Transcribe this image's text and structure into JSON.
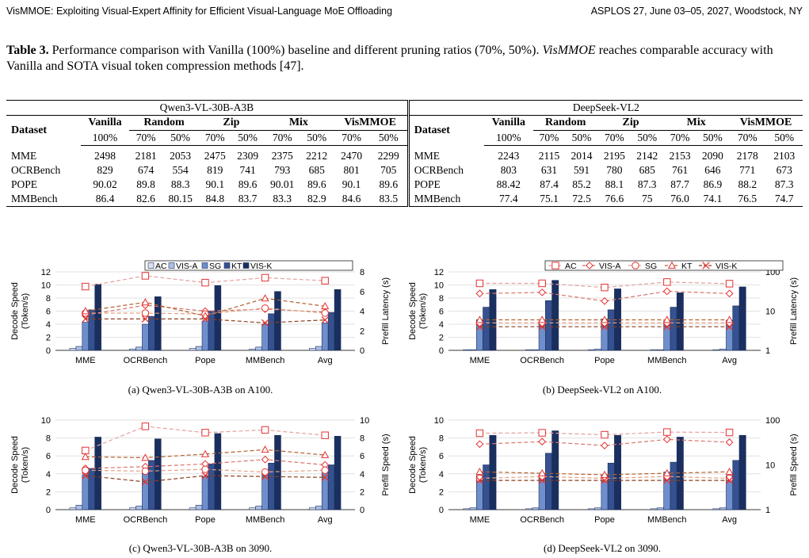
{
  "header": {
    "left": "VisMMOE: Exploiting Visual-Expert Affinity for Efficient Visual-Language MoE Offloading",
    "right": "ASPLOS 27, June 03–05, 2027, Woodstock, NY"
  },
  "caption": {
    "label": "Table 3.",
    "text1": " Performance comparison with Vanilla (100%) baseline and different pruning ratios (70%, 50%). ",
    "italic": "VisMMOE",
    "text2": " reaches comparable accuracy with Vanilla and SOTA visual token compression methods [47]."
  },
  "table": {
    "left_model": "Qwen3-VL-30B-A3B",
    "right_model": "DeepSeek-VL2",
    "dataset_label": "Dataset",
    "methods": [
      "Vanilla",
      "Random",
      "Zip",
      "Mix",
      "VisMMOE"
    ],
    "ratios": [
      "100%",
      "70%",
      "50%",
      "70%",
      "50%",
      "70%",
      "50%",
      "70%",
      "50%"
    ],
    "left_rows": [
      {
        "name": "MME",
        "vals": [
          "2498",
          "2181",
          "2053",
          "2475",
          "2309",
          "2375",
          "2212",
          "2470",
          "2299"
        ]
      },
      {
        "name": "OCRBench",
        "vals": [
          "829",
          "674",
          "554",
          "819",
          "741",
          "793",
          "685",
          "801",
          "705"
        ]
      },
      {
        "name": "POPE",
        "vals": [
          "90.02",
          "89.8",
          "88.3",
          "90.1",
          "89.6",
          "90.01",
          "89.6",
          "90.1",
          "89.6"
        ]
      },
      {
        "name": "MMBench",
        "vals": [
          "86.4",
          "82.6",
          "80.15",
          "84.8",
          "83.7",
          "83.3",
          "82.9",
          "84.6",
          "83.5"
        ]
      }
    ],
    "right_rows": [
      {
        "name": "MME",
        "vals": [
          "2243",
          "2115",
          "2014",
          "2195",
          "2142",
          "2153",
          "2090",
          "2178",
          "2103"
        ]
      },
      {
        "name": "OCRBench",
        "vals": [
          "803",
          "631",
          "591",
          "780",
          "685",
          "761",
          "646",
          "771",
          "673"
        ]
      },
      {
        "name": "POPE",
        "vals": [
          "88.42",
          "87.4",
          "85.2",
          "88.1",
          "87.3",
          "87.7",
          "86.9",
          "88.2",
          "87.3"
        ]
      },
      {
        "name": "MMBench",
        "vals": [
          "77.4",
          "75.1",
          "72.5",
          "76.6",
          "75",
          "76.0",
          "74.1",
          "76.5",
          "74.7"
        ]
      }
    ]
  },
  "legend_bars": [
    "AC",
    "VIS-A",
    "SG",
    "KT",
    "VIS-K"
  ],
  "legend_lines": [
    "AC",
    "VIS-A",
    "SG",
    "KT",
    "VIS-K"
  ],
  "colors": {
    "AC": "#dce1ee",
    "VIS-A": "#aebfe6",
    "SG": "#6f8fcc",
    "KT": "#35518f",
    "VIS-K": "#1a2f5e",
    "line_AC": "#e3a1a1",
    "line_VISA": "#d9746b",
    "line_SG": "#e0a080",
    "line_KT": "#b4622e",
    "line_VISK": "#8c3f1f",
    "marker": "#e53030"
  },
  "chart_data": [
    {
      "type": "bar",
      "title": "",
      "categories": [
        "MME",
        "OCRBench",
        "Pope",
        "MMBench",
        "Avg"
      ],
      "ylabel": "Decode Speed (Token/s)",
      "ylim": [
        0,
        12
      ],
      "yticks": [
        "0",
        "2",
        "4",
        "6",
        "8",
        "10",
        "12"
      ],
      "y2label": "Prefill Latency (s)",
      "y2lim": [
        0,
        8
      ],
      "y2ticks": [
        "0",
        "2",
        "4",
        "6",
        "8"
      ],
      "y2log": false,
      "series": [
        {
          "name": "AC",
          "values": [
            0.3,
            0.2,
            0.3,
            0.2,
            0.3
          ]
        },
        {
          "name": "VIS-A",
          "values": [
            0.6,
            0.5,
            0.6,
            0.5,
            0.6
          ]
        },
        {
          "name": "SG",
          "values": [
            4.3,
            4.0,
            4.5,
            4.0,
            4.2
          ]
        },
        {
          "name": "KT",
          "values": [
            6.2,
            5.2,
            6.0,
            5.6,
            5.8
          ]
        },
        {
          "name": "VIS-K",
          "values": [
            10.1,
            8.2,
            9.9,
            9.0,
            9.3
          ]
        }
      ],
      "lines": [
        {
          "name": "AC",
          "values": [
            6.5,
            7.6,
            6.9,
            7.4,
            7.1
          ]
        },
        {
          "name": "VIS-A",
          "values": [
            3.6,
            4.6,
            4.0,
            4.2,
            3.9
          ]
        },
        {
          "name": "SG",
          "values": [
            3.8,
            3.8,
            3.7,
            4.3,
            3.8
          ]
        },
        {
          "name": "KT",
          "values": [
            4.0,
            4.9,
            3.5,
            5.3,
            4.5
          ]
        },
        {
          "name": "VIS-K",
          "values": [
            3.2,
            3.2,
            3.2,
            2.8,
            3.1
          ]
        }
      ],
      "caption_label": "(a)",
      "caption_text": "Qwen3-VL-30B-A3B on A100."
    },
    {
      "type": "bar",
      "title": "",
      "categories": [
        "MME",
        "OCRBench",
        "Pope",
        "MMBench",
        "Avg"
      ],
      "ylabel": "Decode Speed (Token/s)",
      "ylim": [
        0,
        12
      ],
      "yticks": [
        "0",
        "2",
        "4",
        "6",
        "8",
        "10",
        "12"
      ],
      "y2label": "Prefill Latency (s)",
      "y2lim": [
        1,
        100
      ],
      "y2ticks": [
        "1",
        "10",
        "100"
      ],
      "y2log": true,
      "series": [
        {
          "name": "AC",
          "values": [
            0.1,
            0.1,
            0.1,
            0.1,
            0.1
          ]
        },
        {
          "name": "VIS-A",
          "values": [
            0.1,
            0.1,
            0.2,
            0.1,
            0.2
          ]
        },
        {
          "name": "SG",
          "values": [
            4.7,
            4.4,
            4.8,
            4.5,
            4.6
          ]
        },
        {
          "name": "KT",
          "values": [
            6.6,
            7.6,
            6.2,
            6.6,
            6.8
          ]
        },
        {
          "name": "VIS-K",
          "values": [
            9.3,
            10.7,
            9.4,
            8.8,
            9.7
          ]
        }
      ],
      "lines": [
        {
          "name": "AC",
          "values": [
            51,
            51,
            40,
            55,
            50
          ]
        },
        {
          "name": "VIS-A",
          "values": [
            28,
            30,
            18,
            32,
            28
          ]
        },
        {
          "name": "SG",
          "values": [
            5,
            5,
            5,
            5,
            5
          ]
        },
        {
          "name": "KT",
          "values": [
            6,
            6,
            6,
            6,
            6
          ]
        },
        {
          "name": "VIS-K",
          "values": [
            4,
            4,
            4,
            4,
            4
          ]
        }
      ],
      "caption_label": "(b)",
      "caption_text": "DeepSeek-VL2 on A100."
    },
    {
      "type": "bar",
      "title": "",
      "categories": [
        "MME",
        "OCRBench",
        "Pope",
        "MMBench",
        "Avg"
      ],
      "ylabel": "Decode Speed (Token/s)",
      "ylim": [
        0,
        10
      ],
      "yticks": [
        "0",
        "2",
        "4",
        "6",
        "8",
        "10"
      ],
      "y2label": "Prefill Speed (s)",
      "y2lim": [
        0,
        10
      ],
      "y2ticks": [
        "0",
        "2",
        "4",
        "6",
        "8",
        "10"
      ],
      "y2log": false,
      "series": [
        {
          "name": "AC",
          "values": [
            0.2,
            0.2,
            0.2,
            0.2,
            0.2
          ]
        },
        {
          "name": "VIS-A",
          "values": [
            0.5,
            0.4,
            0.5,
            0.4,
            0.4
          ]
        },
        {
          "name": "SG",
          "values": [
            3.9,
            4.1,
            3.7,
            4.3,
            4.1
          ]
        },
        {
          "name": "KT",
          "values": [
            4.6,
            5.5,
            5.1,
            5.2,
            5.0
          ]
        },
        {
          "name": "VIS-K",
          "values": [
            8.1,
            7.9,
            8.5,
            8.3,
            8.2
          ]
        }
      ],
      "lines": [
        {
          "name": "AC",
          "values": [
            6.6,
            9.3,
            8.6,
            8.9,
            8.3
          ]
        },
        {
          "name": "VIS-A",
          "values": [
            4.6,
            4.8,
            5.1,
            5.6,
            5.0
          ]
        },
        {
          "name": "SG",
          "values": [
            4.4,
            4.3,
            4.5,
            4.2,
            4.4
          ]
        },
        {
          "name": "KT",
          "values": [
            5.9,
            5.8,
            6.2,
            6.7,
            6.1
          ]
        },
        {
          "name": "VIS-K",
          "values": [
            3.8,
            3.1,
            3.8,
            3.7,
            3.6
          ]
        }
      ],
      "caption_label": "(c)",
      "caption_text": "Qwen3-VL-30B-A3B on 3090."
    },
    {
      "type": "bar",
      "title": "",
      "categories": [
        "MME",
        "OCRBench",
        "Pope",
        "MMBench",
        "Avg"
      ],
      "ylabel": "Decode Speed (Token/s)",
      "ylim": [
        0,
        10
      ],
      "yticks": [
        "0",
        "2",
        "4",
        "6",
        "8",
        "10"
      ],
      "y2label": "Prefill Speed (s)",
      "y2lim": [
        1,
        100
      ],
      "y2ticks": [
        "1",
        "10",
        "100"
      ],
      "y2log": true,
      "series": [
        {
          "name": "AC",
          "values": [
            0.1,
            0.1,
            0.1,
            0.1,
            0.1
          ]
        },
        {
          "name": "VIS-A",
          "values": [
            0.2,
            0.2,
            0.2,
            0.2,
            0.2
          ]
        },
        {
          "name": "SG",
          "values": [
            3.8,
            3.9,
            3.9,
            4.2,
            3.8
          ]
        },
        {
          "name": "KT",
          "values": [
            5.0,
            6.3,
            5.2,
            5.3,
            5.5
          ]
        },
        {
          "name": "VIS-K",
          "values": [
            8.3,
            8.8,
            8.3,
            8.1,
            8.3
          ]
        }
      ],
      "lines": [
        {
          "name": "AC",
          "values": [
            51,
            52,
            47,
            54,
            53
          ]
        },
        {
          "name": "VIS-A",
          "values": [
            29,
            33,
            27,
            37,
            32
          ]
        },
        {
          "name": "SG",
          "values": [
            5,
            5.5,
            5,
            5.5,
            5
          ]
        },
        {
          "name": "KT",
          "values": [
            7,
            6.5,
            6,
            6.5,
            7
          ]
        },
        {
          "name": "VIS-K",
          "values": [
            4.5,
            4.5,
            4.5,
            4.5,
            4.5
          ]
        }
      ],
      "caption_label": "(d)",
      "caption_text": "DeepSeek-VL2 on 3090."
    }
  ]
}
